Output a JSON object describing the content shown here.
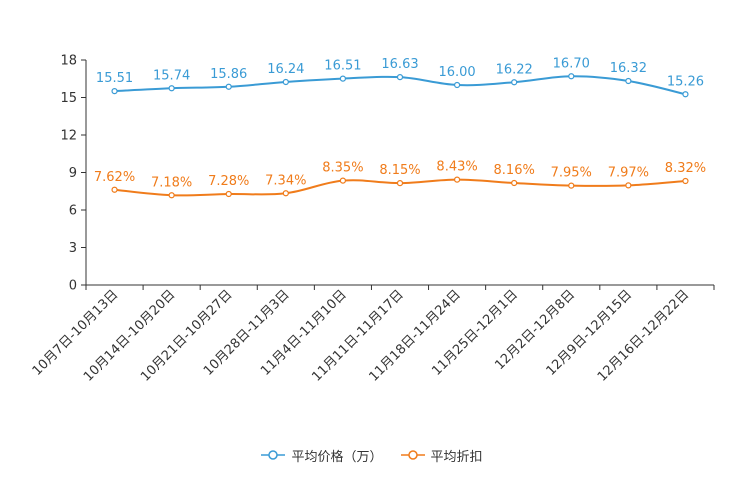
{
  "chart_data": {
    "type": "line",
    "categories": [
      "10月7日-10月13日",
      "10月14日-10月20日",
      "10月21日-10月27日",
      "10月28日-11月3日",
      "11月4日-11月10日",
      "11月11日-11月17日",
      "11月18日-11月24日",
      "11月25日-12月1日",
      "12月2日-12月8日",
      "12月9日-12月15日",
      "12月16日-12月22日"
    ],
    "ylim": [
      0,
      18
    ],
    "yticks": [
      0,
      3,
      6,
      9,
      12,
      15,
      18
    ],
    "series": [
      {
        "name": "平均价格（万）",
        "color": "#3a9bd5",
        "values": [
          15.51,
          15.74,
          15.86,
          16.24,
          16.51,
          16.63,
          16.0,
          16.22,
          16.7,
          16.32,
          15.26
        ],
        "labels": [
          "15.51",
          "15.74",
          "15.86",
          "16.24",
          "16.51",
          "16.63",
          "16.00",
          "16.22",
          "16.70",
          "16.32",
          "15.26"
        ]
      },
      {
        "name": "平均折扣",
        "color": "#f07c1b",
        "values": [
          7.62,
          7.18,
          7.28,
          7.34,
          8.35,
          8.15,
          8.43,
          8.16,
          7.95,
          7.97,
          8.32
        ],
        "labels": [
          "7.62%",
          "7.18%",
          "7.28%",
          "7.34%",
          "8.35%",
          "8.15%",
          "8.43%",
          "8.16%",
          "7.95%",
          "7.97%",
          "8.32%"
        ]
      }
    ]
  }
}
